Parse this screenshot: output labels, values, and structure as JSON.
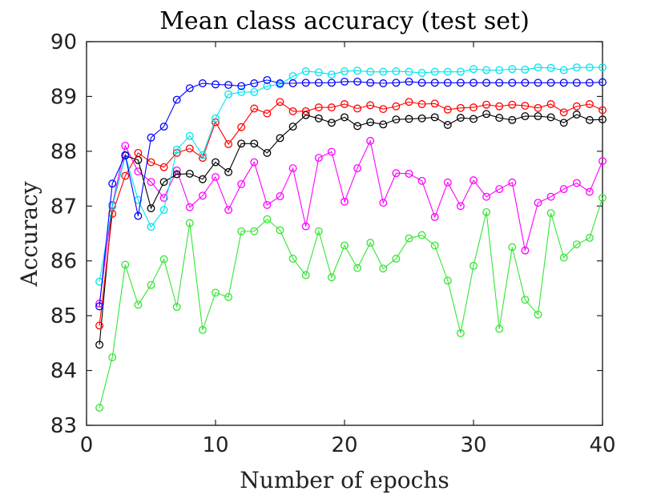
{
  "chart_data": {
    "type": "line",
    "title": "Mean class accuracy (test set)",
    "xlabel": "Number of epochs",
    "ylabel": "Accuracy",
    "xlim": [
      0,
      40
    ],
    "ylim": [
      83,
      90
    ],
    "xticks": [
      "0",
      "10",
      "20",
      "30",
      "40"
    ],
    "yticks": [
      "83",
      "84",
      "85",
      "86",
      "87",
      "88",
      "89",
      "90"
    ],
    "grid": false,
    "marker": "circle",
    "x": [
      1,
      2,
      3,
      4,
      5,
      6,
      7,
      8,
      9,
      10,
      11,
      12,
      13,
      14,
      15,
      16,
      17,
      18,
      19,
      20,
      21,
      22,
      23,
      24,
      25,
      26,
      27,
      28,
      29,
      30,
      31,
      32,
      33,
      34,
      35,
      36,
      37,
      38,
      39,
      40
    ],
    "series": [
      {
        "name": "blue",
        "color": "#0000ff",
        "values": [
          85.17,
          87.41,
          87.93,
          86.82,
          88.25,
          88.45,
          88.94,
          89.15,
          89.24,
          89.22,
          89.21,
          89.19,
          89.24,
          89.3,
          89.24,
          89.24,
          89.25,
          89.25,
          89.25,
          89.27,
          89.27,
          89.25,
          89.24,
          89.25,
          89.27,
          89.25,
          89.25,
          89.25,
          89.25,
          89.25,
          89.25,
          89.25,
          89.25,
          89.25,
          89.25,
          89.25,
          89.25,
          89.25,
          89.25,
          89.26
        ]
      },
      {
        "name": "cyan",
        "color": "#00e5ee",
        "values": [
          85.62,
          87.0,
          87.93,
          87.11,
          86.62,
          86.93,
          88.03,
          88.28,
          87.93,
          88.6,
          89.04,
          89.08,
          89.08,
          89.19,
          89.22,
          89.37,
          89.46,
          89.44,
          89.4,
          89.46,
          89.47,
          89.45,
          89.45,
          89.46,
          89.45,
          89.43,
          89.45,
          89.45,
          89.45,
          89.5,
          89.48,
          89.48,
          89.5,
          89.49,
          89.53,
          89.52,
          89.48,
          89.53,
          89.53,
          89.53
        ]
      },
      {
        "name": "red",
        "color": "#ff0000",
        "values": [
          84.82,
          86.86,
          87.55,
          87.97,
          87.8,
          87.71,
          87.97,
          88.05,
          87.88,
          88.53,
          88.13,
          88.44,
          88.78,
          88.69,
          88.9,
          88.73,
          88.73,
          88.8,
          88.8,
          88.86,
          88.78,
          88.84,
          88.77,
          88.82,
          88.9,
          88.86,
          88.87,
          88.76,
          88.79,
          88.8,
          88.85,
          88.82,
          88.85,
          88.83,
          88.79,
          88.86,
          88.71,
          88.82,
          88.86,
          88.75
        ]
      },
      {
        "name": "black",
        "color": "#000000",
        "values": [
          84.47,
          87.0,
          87.92,
          87.84,
          86.96,
          87.44,
          87.58,
          87.59,
          87.49,
          87.8,
          87.62,
          88.14,
          88.14,
          87.97,
          88.24,
          88.45,
          88.66,
          88.6,
          88.52,
          88.62,
          88.46,
          88.53,
          88.49,
          88.58,
          88.59,
          88.6,
          88.62,
          88.48,
          88.61,
          88.59,
          88.68,
          88.61,
          88.57,
          88.64,
          88.64,
          88.62,
          88.52,
          88.67,
          88.57,
          88.58
        ]
      },
      {
        "name": "magenta",
        "color": "#ff00ff",
        "values": [
          85.22,
          87.02,
          88.1,
          87.63,
          87.44,
          87.15,
          87.65,
          86.98,
          87.19,
          87.53,
          86.93,
          87.4,
          87.8,
          87.02,
          87.18,
          87.69,
          86.63,
          87.88,
          87.99,
          87.08,
          87.69,
          88.19,
          87.06,
          87.6,
          87.59,
          87.46,
          86.8,
          87.43,
          87.0,
          87.47,
          87.17,
          87.31,
          87.43,
          86.19,
          87.06,
          87.17,
          87.31,
          87.42,
          87.26,
          87.82
        ]
      },
      {
        "name": "green",
        "color": "#33e633",
        "values": [
          83.32,
          84.24,
          85.93,
          85.2,
          85.56,
          86.03,
          85.16,
          86.69,
          84.74,
          85.42,
          85.34,
          86.54,
          86.54,
          86.76,
          86.56,
          86.04,
          85.74,
          86.54,
          85.7,
          86.28,
          85.87,
          86.33,
          85.86,
          86.04,
          86.41,
          86.47,
          86.28,
          85.64,
          84.68,
          85.91,
          86.89,
          84.76,
          86.25,
          85.29,
          85.02,
          86.87,
          86.06,
          86.3,
          86.42,
          87.15
        ]
      }
    ]
  }
}
